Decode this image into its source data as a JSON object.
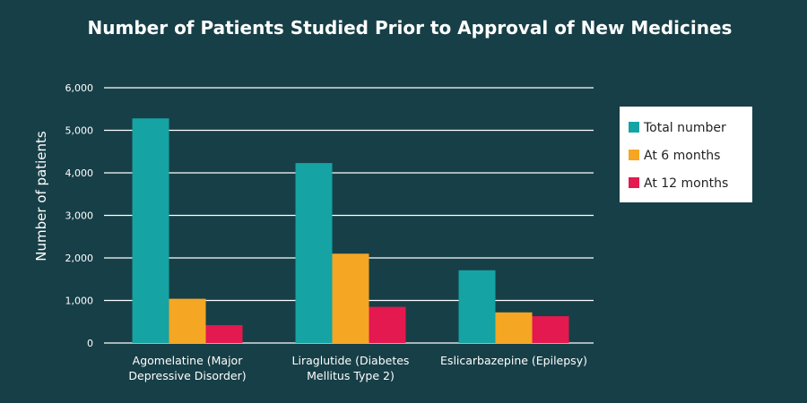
{
  "chart_data": {
    "type": "bar",
    "title": "Number of Patients Studied Prior to Approval of New Medicines",
    "xlabel": "",
    "ylabel": "Number of patients",
    "ylim": [
      0,
      6000
    ],
    "yticks": [
      "0",
      "1,000",
      "2,000",
      "3,000",
      "4,000",
      "5,000",
      "6,000"
    ],
    "grid": true,
    "legend_position": "right",
    "categories": [
      [
        "Agomelatine (Major",
        "Depressive Disorder)"
      ],
      [
        "Liraglutide (Diabetes",
        "Mellitus Type 2)"
      ],
      [
        "Eslicarbazepine (Epilepsy)"
      ]
    ],
    "series": [
      {
        "name": "Total number",
        "color": "#16a3a3",
        "values": [
          5280,
          4230,
          1710
        ]
      },
      {
        "name": "At 6 months",
        "color": "#f5a623",
        "values": [
          1040,
          2100,
          720
        ]
      },
      {
        "name": "At 12 months",
        "color": "#e3194f",
        "values": [
          420,
          850,
          630
        ]
      }
    ]
  }
}
